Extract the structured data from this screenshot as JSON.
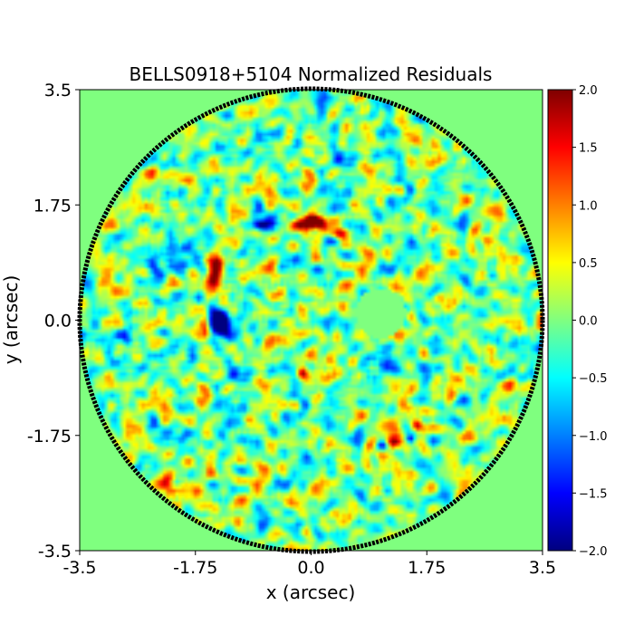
{
  "chart_data": {
    "type": "heatmap",
    "title": "BELLS0918+5104 Normalized Residuals",
    "xlabel": "x (arcsec)",
    "ylabel": "y (arcsec)",
    "xlim": [
      -3.5,
      3.5
    ],
    "ylim": [
      -3.5,
      3.5
    ],
    "x_ticks": [
      {
        "value": -3.5,
        "label": "-3.5"
      },
      {
        "value": -1.75,
        "label": "-1.75"
      },
      {
        "value": 0.0,
        "label": "0.0"
      },
      {
        "value": 1.75,
        "label": "1.75"
      },
      {
        "value": 3.5,
        "label": "3.5"
      }
    ],
    "y_ticks": [
      {
        "value": -3.5,
        "label": "-3.5"
      },
      {
        "value": -1.75,
        "label": "-1.75"
      },
      {
        "value": 0.0,
        "label": "0.0"
      },
      {
        "value": 1.75,
        "label": "1.75"
      },
      {
        "value": 3.5,
        "label": "3.5"
      }
    ],
    "colormap": "jet",
    "background_color": "#7fff7f",
    "mask_radius_arcsec": 3.5,
    "mask_outline_color": "#000000",
    "masked_hole": {
      "x": 1.05,
      "y": 0.1,
      "radius": 0.38
    },
    "colorbar": {
      "min": -2.0,
      "max": 2.0,
      "ticks": [
        {
          "value": 2.0,
          "label": "2.0"
        },
        {
          "value": 1.5,
          "label": "1.5"
        },
        {
          "value": 1.0,
          "label": "1.0"
        },
        {
          "value": 0.5,
          "label": "0.5"
        },
        {
          "value": 0.0,
          "label": "0.0"
        },
        {
          "value": -0.5,
          "label": "−0.5"
        },
        {
          "value": -1.0,
          "label": "−1.0"
        },
        {
          "value": -1.5,
          "label": "−1.5"
        },
        {
          "value": -2.0,
          "label": "−2.0"
        }
      ]
    },
    "features": [
      {
        "x": -0.2,
        "y": 1.45,
        "value": 1.9,
        "sx": 0.3,
        "sy": 0.08
      },
      {
        "x": 0.1,
        "y": 1.5,
        "value": 1.9,
        "sx": 0.18,
        "sy": 0.07
      },
      {
        "x": 0.4,
        "y": 1.3,
        "value": 1.8,
        "sx": 0.1,
        "sy": 0.07
      },
      {
        "x": -0.7,
        "y": 1.45,
        "value": -1.9,
        "sx": 0.22,
        "sy": 0.07
      },
      {
        "x": 0.35,
        "y": 1.2,
        "value": -1.6,
        "sx": 0.08,
        "sy": 0.06
      },
      {
        "x": -1.5,
        "y": 0.65,
        "value": 1.8,
        "sx": 0.08,
        "sy": 0.22
      },
      {
        "x": -1.4,
        "y": 0.85,
        "value": 1.5,
        "sx": 0.06,
        "sy": 0.1
      },
      {
        "x": -1.45,
        "y": 0.05,
        "value": -2.0,
        "sx": 0.1,
        "sy": 0.18
      },
      {
        "x": -1.3,
        "y": -0.1,
        "value": -1.8,
        "sx": 0.08,
        "sy": 0.1
      },
      {
        "x": -1.6,
        "y": 0.0,
        "value": 1.6,
        "sx": 0.05,
        "sy": 0.2
      },
      {
        "x": 1.25,
        "y": -1.85,
        "value": 1.9,
        "sx": 0.12,
        "sy": 0.07
      },
      {
        "x": 1.1,
        "y": -1.9,
        "value": -1.7,
        "sx": 0.08,
        "sy": 0.06
      },
      {
        "x": 1.6,
        "y": -1.6,
        "value": 1.5,
        "sx": 0.06,
        "sy": 0.06
      },
      {
        "x": 1.5,
        "y": -1.8,
        "value": -1.5,
        "sx": 0.05,
        "sy": 0.05
      },
      {
        "x": -0.15,
        "y": -0.8,
        "value": 1.5,
        "sx": 0.06,
        "sy": 0.06
      },
      {
        "x": 1.1,
        "y": -0.6,
        "value": -1.0,
        "sx": 0.15,
        "sy": 0.15
      },
      {
        "x": -2.2,
        "y": 0.9,
        "value": -0.8,
        "sx": 0.2,
        "sy": 0.2
      },
      {
        "x": -1.9,
        "y": -2.5,
        "value": 0.8,
        "sx": 0.25,
        "sy": 0.2
      }
    ]
  }
}
